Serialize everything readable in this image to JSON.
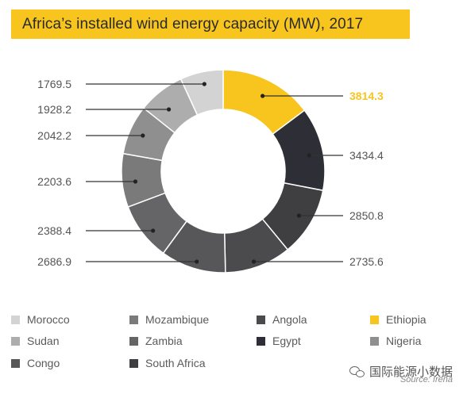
{
  "chart_data": {
    "type": "pie",
    "title": "Africa’s installed wind energy capacity (MW), 2017",
    "donut": true,
    "slices": [
      {
        "label": "Ethiopia",
        "value": 3814.3,
        "color": "#f7c51e"
      },
      {
        "label": "Egypt",
        "value": 3434.4,
        "color": "#2e2f36"
      },
      {
        "label": "South Africa",
        "value": 2850.8,
        "color": "#3f3f42"
      },
      {
        "label": "Angola",
        "value": 2735.6,
        "color": "#4b4b4e"
      },
      {
        "label": "Congo",
        "value": 2686.9,
        "color": "#57575a"
      },
      {
        "label": "Zambia",
        "value": 2388.4,
        "color": "#656567"
      },
      {
        "label": "Mozambique",
        "value": 2203.6,
        "color": "#7a7a7b"
      },
      {
        "label": "Nigeria",
        "value": 2042.2,
        "color": "#8f8f8f"
      },
      {
        "label": "Sudan",
        "value": 1928.2,
        "color": "#adadad"
      },
      {
        "label": "Morocco",
        "value": 1769.5,
        "color": "#d3d3d3"
      }
    ],
    "value_labels": [
      "3814.3",
      "3434.4",
      "2850.8",
      "2735.6",
      "2686.9",
      "2388.4",
      "2203.6",
      "2042.2",
      "1928.2",
      "1769.5"
    ],
    "legend_order": [
      "Morocco",
      "Mozambique",
      "Angola",
      "Ethiopia",
      "Sudan",
      "Zambia",
      "Egypt",
      "Nigeria",
      "Congo",
      "South Africa"
    ],
    "legend_position": "bottom",
    "accent_label_color": "#f7c51e"
  },
  "source": "Source: Irena",
  "watermark": "国际能源小数据",
  "watermark_icon": "wechat-icon"
}
